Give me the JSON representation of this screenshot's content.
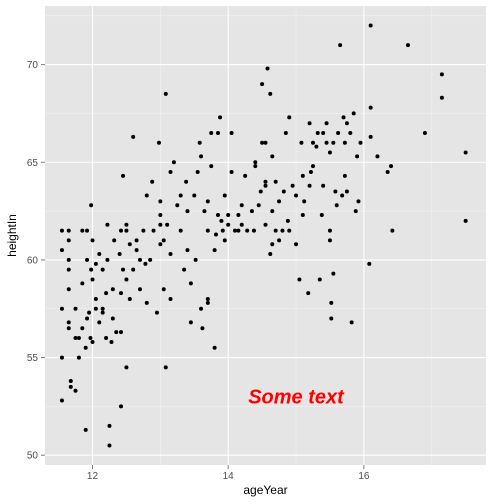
{
  "chart_data": {
    "type": "scatter",
    "xlabel": "ageYear",
    "ylabel": "heightIn",
    "xlim": [
      11.3,
      17.8
    ],
    "ylim": [
      49.5,
      73.0
    ],
    "x_ticks": [
      12,
      14,
      16
    ],
    "y_ticks": [
      50,
      55,
      60,
      65,
      70
    ],
    "x_tick_labels": [
      "12",
      "14",
      "16"
    ],
    "y_tick_labels": [
      "50",
      "55",
      "60",
      "65",
      "70"
    ],
    "grid": true,
    "background_color": "#e5e5e5",
    "point_color": "#000000",
    "annotation": {
      "text": "Some text",
      "x": 15.0,
      "y": 53.0,
      "color": "#ff0000"
    },
    "points": [
      [
        11.55,
        52.8
      ],
      [
        11.55,
        55.0
      ],
      [
        11.55,
        57.5
      ],
      [
        11.55,
        60.5
      ],
      [
        11.55,
        61.5
      ],
      [
        11.65,
        56.5
      ],
      [
        11.65,
        56.8
      ],
      [
        11.65,
        58.5
      ],
      [
        11.65,
        59.5
      ],
      [
        11.65,
        60.0
      ],
      [
        11.65,
        61.0
      ],
      [
        11.65,
        61.5
      ],
      [
        11.68,
        53.5
      ],
      [
        11.68,
        53.8
      ],
      [
        11.75,
        53.3
      ],
      [
        11.75,
        56.0
      ],
      [
        11.75,
        57.5
      ],
      [
        11.8,
        55.0
      ],
      [
        11.8,
        56.0
      ],
      [
        11.85,
        56.5
      ],
      [
        11.85,
        58.8
      ],
      [
        11.85,
        61.5
      ],
      [
        11.9,
        51.3
      ],
      [
        11.9,
        55.5
      ],
      [
        11.92,
        57.0
      ],
      [
        11.92,
        60.0
      ],
      [
        11.92,
        61.5
      ],
      [
        11.95,
        57.3
      ],
      [
        11.97,
        56.0
      ],
      [
        11.98,
        59.5
      ],
      [
        11.98,
        62.8
      ],
      [
        12.0,
        55.8
      ],
      [
        12.0,
        59.0
      ],
      [
        12.0,
        61.0
      ],
      [
        12.05,
        57.5
      ],
      [
        12.05,
        58.0
      ],
      [
        12.05,
        59.8
      ],
      [
        12.1,
        56.8
      ],
      [
        12.1,
        60.3
      ],
      [
        12.15,
        57.3
      ],
      [
        12.15,
        57.5
      ],
      [
        12.15,
        59.5
      ],
      [
        12.2,
        56.0
      ],
      [
        12.2,
        58.3
      ],
      [
        12.22,
        60.0
      ],
      [
        12.22,
        61.8
      ],
      [
        12.25,
        50.5
      ],
      [
        12.25,
        51.5
      ],
      [
        12.28,
        55.8
      ],
      [
        12.3,
        57.0
      ],
      [
        12.3,
        58.5
      ],
      [
        12.32,
        61.0
      ],
      [
        12.35,
        56.3
      ],
      [
        12.4,
        60.3
      ],
      [
        12.42,
        52.5
      ],
      [
        12.42,
        56.3
      ],
      [
        12.42,
        58.3
      ],
      [
        12.42,
        61.5
      ],
      [
        12.45,
        64.3
      ],
      [
        12.45,
        59.5
      ],
      [
        12.5,
        54.5
      ],
      [
        12.5,
        59.0
      ],
      [
        12.5,
        61.5
      ],
      [
        12.5,
        61.8
      ],
      [
        12.55,
        60.8
      ],
      [
        12.55,
        58.0
      ],
      [
        12.6,
        66.3
      ],
      [
        12.6,
        59.5
      ],
      [
        12.65,
        61.0
      ],
      [
        12.65,
        60.5
      ],
      [
        12.7,
        58.5
      ],
      [
        12.7,
        60.0
      ],
      [
        12.75,
        61.5
      ],
      [
        12.78,
        59.8
      ],
      [
        12.8,
        57.8
      ],
      [
        12.8,
        63.3
      ],
      [
        12.85,
        60.0
      ],
      [
        12.88,
        64.0
      ],
      [
        12.9,
        61.5
      ],
      [
        12.95,
        57.3
      ],
      [
        12.98,
        66.0
      ],
      [
        13.0,
        63.0
      ],
      [
        13.0,
        62.3
      ],
      [
        13.0,
        61.8
      ],
      [
        13.0,
        60.8
      ],
      [
        13.05,
        58.5
      ],
      [
        13.05,
        61.0
      ],
      [
        13.08,
        54.5
      ],
      [
        13.08,
        68.5
      ],
      [
        13.1,
        61.8
      ],
      [
        13.15,
        58.0
      ],
      [
        13.15,
        60.3
      ],
      [
        13.15,
        64.5
      ],
      [
        13.2,
        65.0
      ],
      [
        13.25,
        62.8
      ],
      [
        13.3,
        63.3
      ],
      [
        13.3,
        61.5
      ],
      [
        13.35,
        59.5
      ],
      [
        13.38,
        64.0
      ],
      [
        13.4,
        62.5
      ],
      [
        13.4,
        60.5
      ],
      [
        13.45,
        58.8
      ],
      [
        13.45,
        56.8
      ],
      [
        13.5,
        63.3
      ],
      [
        13.52,
        60.0
      ],
      [
        13.55,
        64.5
      ],
      [
        13.58,
        66.0
      ],
      [
        13.6,
        65.3
      ],
      [
        13.6,
        57.5
      ],
      [
        13.62,
        56.5
      ],
      [
        13.65,
        62.5
      ],
      [
        13.7,
        63.0
      ],
      [
        13.7,
        61.5
      ],
      [
        13.7,
        58.0
      ],
      [
        13.7,
        57.8
      ],
      [
        13.75,
        64.8
      ],
      [
        13.75,
        66.5
      ],
      [
        13.8,
        55.5
      ],
      [
        13.8,
        60.5
      ],
      [
        13.82,
        61.3
      ],
      [
        13.85,
        62.3
      ],
      [
        13.85,
        66.5
      ],
      [
        13.88,
        67.3
      ],
      [
        13.9,
        62.0
      ],
      [
        13.92,
        61.5
      ],
      [
        13.95,
        63.3
      ],
      [
        13.95,
        61.0
      ],
      [
        14.0,
        62.3
      ],
      [
        14.0,
        61.8
      ],
      [
        14.05,
        64.5
      ],
      [
        14.05,
        66.5
      ],
      [
        14.1,
        61.5
      ],
      [
        14.15,
        62.3
      ],
      [
        14.15,
        61.5
      ],
      [
        14.2,
        61.8
      ],
      [
        14.2,
        62.8
      ],
      [
        14.25,
        64.3
      ],
      [
        14.28,
        61.5
      ],
      [
        14.35,
        62.5
      ],
      [
        14.38,
        61.5
      ],
      [
        14.4,
        64.8
      ],
      [
        14.4,
        65.0
      ],
      [
        14.45,
        62.8
      ],
      [
        14.48,
        63.5
      ],
      [
        14.5,
        66.0
      ],
      [
        14.5,
        69.0
      ],
      [
        14.55,
        64.0
      ],
      [
        14.55,
        63.8
      ],
      [
        14.55,
        66.0
      ],
      [
        14.55,
        61.8
      ],
      [
        14.58,
        69.8
      ],
      [
        14.62,
        60.3
      ],
      [
        14.62,
        68.5
      ],
      [
        14.65,
        60.8
      ],
      [
        14.65,
        62.5
      ],
      [
        14.65,
        65.3
      ],
      [
        14.7,
        64.0
      ],
      [
        14.7,
        61.5
      ],
      [
        14.75,
        63.0
      ],
      [
        14.75,
        61.0
      ],
      [
        14.8,
        61.5
      ],
      [
        14.82,
        63.5
      ],
      [
        14.85,
        66.5
      ],
      [
        14.88,
        62.0
      ],
      [
        14.9,
        67.3
      ],
      [
        14.9,
        61.5
      ],
      [
        14.95,
        63.8
      ],
      [
        15.0,
        60.8
      ],
      [
        15.0,
        63.3
      ],
      [
        15.05,
        59.0
      ],
      [
        15.08,
        66.0
      ],
      [
        15.1,
        64.3
      ],
      [
        15.1,
        62.3
      ],
      [
        15.12,
        63.0
      ],
      [
        15.18,
        58.3
      ],
      [
        15.2,
        63.8
      ],
      [
        15.2,
        67.0
      ],
      [
        15.22,
        64.5
      ],
      [
        15.25,
        64.8
      ],
      [
        15.25,
        66.0
      ],
      [
        15.3,
        65.8
      ],
      [
        15.32,
        66.5
      ],
      [
        15.35,
        59.0
      ],
      [
        15.38,
        62.3
      ],
      [
        15.4,
        63.8
      ],
      [
        15.4,
        66.5
      ],
      [
        15.45,
        66.0
      ],
      [
        15.45,
        67.0
      ],
      [
        15.5,
        61.5
      ],
      [
        15.5,
        61.0
      ],
      [
        15.5,
        65.5
      ],
      [
        15.52,
        57.8
      ],
      [
        15.52,
        57.0
      ],
      [
        15.55,
        59.3
      ],
      [
        15.55,
        66.0
      ],
      [
        15.58,
        63.5
      ],
      [
        15.6,
        62.8
      ],
      [
        15.62,
        66.5
      ],
      [
        15.65,
        71.0
      ],
      [
        15.68,
        63.3
      ],
      [
        15.7,
        67.3
      ],
      [
        15.72,
        64.3
      ],
      [
        15.72,
        66.0
      ],
      [
        15.75,
        63.5
      ],
      [
        15.75,
        67.0
      ],
      [
        15.8,
        66.5
      ],
      [
        15.82,
        56.8
      ],
      [
        15.85,
        67.5
      ],
      [
        15.88,
        62.5
      ],
      [
        15.9,
        65.3
      ],
      [
        15.92,
        63.0
      ],
      [
        15.95,
        66.0
      ],
      [
        16.08,
        59.8
      ],
      [
        16.1,
        66.3
      ],
      [
        16.1,
        67.8
      ],
      [
        16.1,
        72.0
      ],
      [
        16.2,
        65.3
      ],
      [
        16.35,
        64.5
      ],
      [
        16.4,
        64.8
      ],
      [
        16.42,
        61.5
      ],
      [
        16.65,
        71.0
      ],
      [
        16.9,
        66.5
      ],
      [
        17.15,
        68.3
      ],
      [
        17.15,
        69.5
      ],
      [
        17.5,
        62.0
      ],
      [
        17.5,
        65.5
      ]
    ]
  }
}
